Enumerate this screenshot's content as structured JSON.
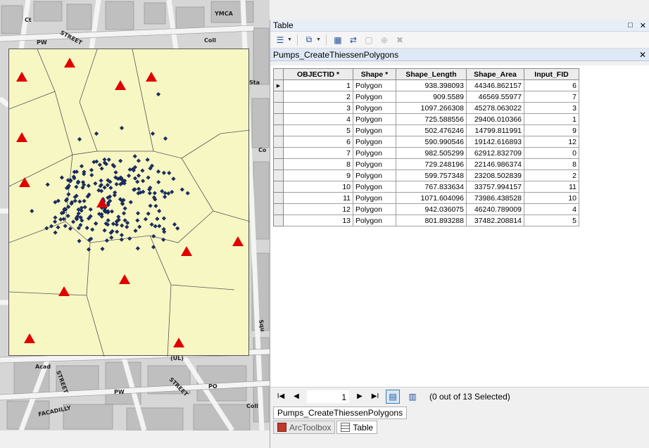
{
  "map": {
    "street_labels": [
      "Ct",
      "PW",
      "Coll",
      "YMCA",
      "STREET",
      "Sta",
      "Acad",
      "PW",
      "PO",
      "Coll",
      "(UL)",
      "FACADILLY",
      "STREET",
      "STREET",
      "Squ",
      "Co"
    ],
    "status_icons": [
      "⊟",
      "⟳",
      "⏸"
    ]
  },
  "table_window": {
    "title": "Table",
    "maximize": "□",
    "close": "✕",
    "layer_name": "Pumps_CreateThiessenPolygons",
    "layer_close": "✕",
    "columns": [
      "OBJECTID *",
      "Shape *",
      "Shape_Length",
      "Shape_Area",
      "Input_FID"
    ],
    "rows": [
      {
        "oid": "1",
        "shape": "Polygon",
        "len": "938.398093",
        "area": "44346.862157",
        "fid": "6",
        "current": "▶"
      },
      {
        "oid": "2",
        "shape": "Polygon",
        "len": "909.5589",
        "area": "46569.55977",
        "fid": "7",
        "current": ""
      },
      {
        "oid": "3",
        "shape": "Polygon",
        "len": "1097.266308",
        "area": "45278.063022",
        "fid": "3",
        "current": ""
      },
      {
        "oid": "4",
        "shape": "Polygon",
        "len": "725.588556",
        "area": "29406.010366",
        "fid": "1",
        "current": ""
      },
      {
        "oid": "5",
        "shape": "Polygon",
        "len": "502.476246",
        "area": "14799.811991",
        "fid": "9",
        "current": ""
      },
      {
        "oid": "6",
        "shape": "Polygon",
        "len": "590.990546",
        "area": "19142.616893",
        "fid": "12",
        "current": ""
      },
      {
        "oid": "7",
        "shape": "Polygon",
        "len": "982.505299",
        "area": "62912.832709",
        "fid": "0",
        "current": ""
      },
      {
        "oid": "8",
        "shape": "Polygon",
        "len": "729.248196",
        "area": "22146.986374",
        "fid": "8",
        "current": ""
      },
      {
        "oid": "9",
        "shape": "Polygon",
        "len": "599.757348",
        "area": "23208.502839",
        "fid": "2",
        "current": ""
      },
      {
        "oid": "10",
        "shape": "Polygon",
        "len": "767.833634",
        "area": "33757.994157",
        "fid": "11",
        "current": ""
      },
      {
        "oid": "11",
        "shape": "Polygon",
        "len": "1071.604096",
        "area": "73986.438528",
        "fid": "10",
        "current": ""
      },
      {
        "oid": "12",
        "shape": "Polygon",
        "len": "942.036075",
        "area": "46240.789009",
        "fid": "4",
        "current": ""
      },
      {
        "oid": "13",
        "shape": "Polygon",
        "len": "801.893288",
        "area": "37482.208814",
        "fid": "5",
        "current": ""
      }
    ],
    "nav": {
      "first": "I◀",
      "prev": "◀",
      "page": "1",
      "next": "▶",
      "last": "▶I",
      "selection_status": "(0 out of 13 Selected)"
    },
    "layer_tab": "Pumps_CreateThiessenPolygons",
    "dock_tabs": {
      "arctoolbox": "ArcToolbox",
      "table": "Table"
    }
  },
  "colors": {
    "polygon_fill": "#f7f7c4",
    "pump_marker": "#e00000",
    "death_marker": "#1a2f66",
    "selection_accent": "#3c7fb1"
  }
}
